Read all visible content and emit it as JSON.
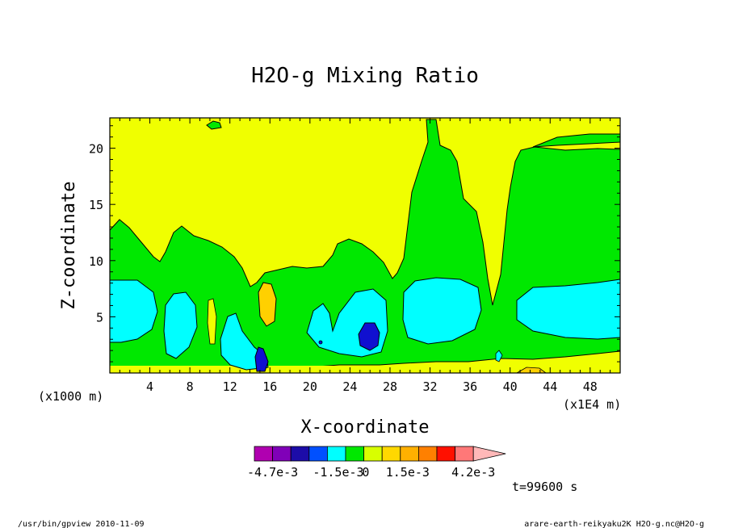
{
  "chart_data": {
    "type": "heatmap",
    "title": "H2O-g Mixing Ratio",
    "xlabel": "X-coordinate",
    "ylabel": "Z-coordinate",
    "x_unit_left": "(x1000 m)",
    "x_unit_right": "(x1E4 m)",
    "xlim": [
      0,
      51
    ],
    "ylim": [
      0,
      22.7
    ],
    "x_ticks": [
      4,
      8,
      12,
      16,
      20,
      24,
      28,
      32,
      36,
      40,
      44,
      48
    ],
    "y_ticks": [
      5,
      10,
      15,
      20
    ],
    "time_label": "t=99600 s",
    "colorbar": {
      "levels": [
        "-4.7e-3",
        "-1.5e-3",
        "0",
        "1.5e-3",
        "4.2e-3"
      ],
      "colors": [
        "#b000b0",
        "#8000b8",
        "#1c0ca8",
        "#0050ff",
        "#00ffff",
        "#00e800",
        "#d8ff00",
        "#ffd800",
        "#ffb000",
        "#ff8000",
        "#ff1000",
        "#ff7878",
        "#ffb8b8"
      ]
    },
    "fill_colors": {
      "yellow": "#f0ff00",
      "green": "#00e800",
      "cyan": "#00ffff",
      "blue": "#1010d0",
      "orange": "#ffd000"
    }
  },
  "footer": {
    "left": "/usr/bin/gpview  2010-11-09",
    "right": "arare-earth-reikyaku2K_H2O-g.nc@H2O-g"
  }
}
